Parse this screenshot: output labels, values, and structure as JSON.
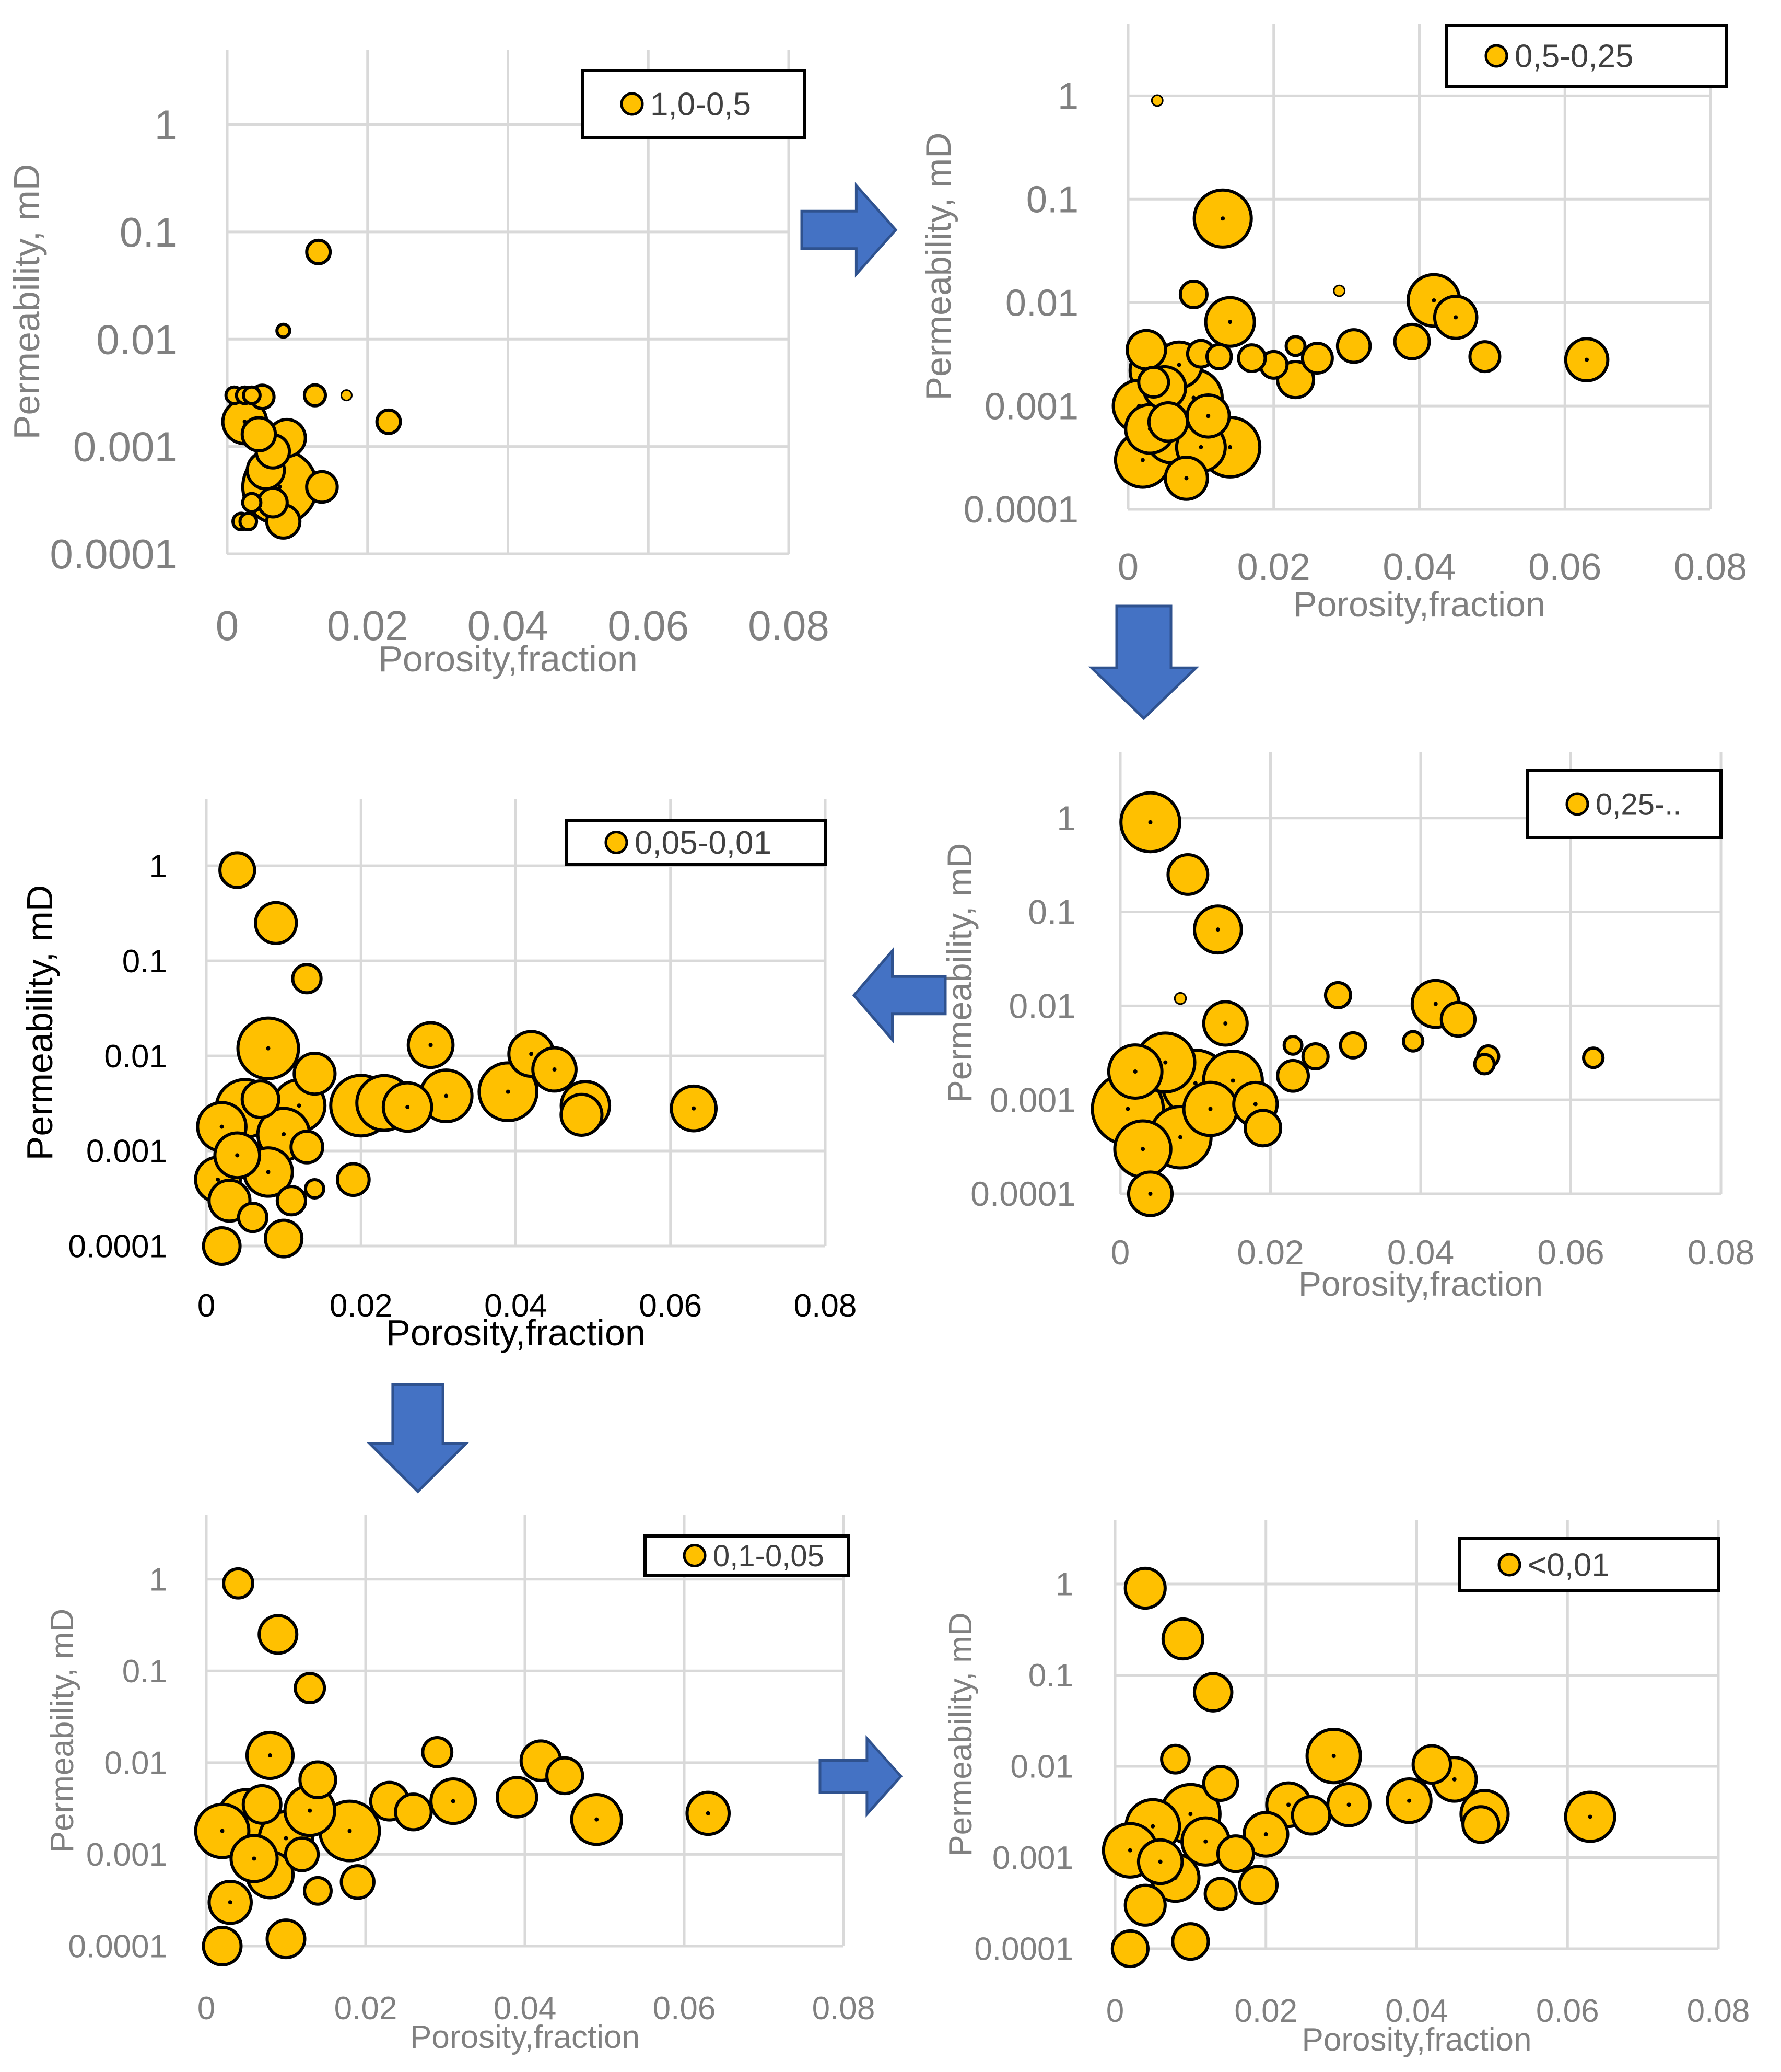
{
  "colors": {
    "bubble_fill": "#FFC000",
    "bubble_stroke": "#000000",
    "grid": "#D9D9D9",
    "arrow_fill": "#4472C4",
    "arrow_stroke": "#2F528F"
  },
  "chart_data": [
    {
      "type": "scatter",
      "subtype": "bubble",
      "series_name": "1,0-0,5",
      "xlabel": "Porosity,fraction",
      "ylabel": "Permeability, mD",
      "y_scale": "log",
      "xlim": [
        0,
        0.08
      ],
      "ylim": [
        0.0001,
        5
      ],
      "x_ticks": [
        "0",
        "0.02",
        "0.04",
        "0.06",
        "0.08"
      ],
      "y_ticks": [
        "1",
        "0.1",
        "0.01",
        "0.001",
        "0.0001"
      ],
      "legend": "top-right",
      "grid": true,
      "points": [
        {
          "x": 0.0075,
          "y": 0.00042,
          "s": 1.0
        },
        {
          "x": 0.0025,
          "y": 0.0017,
          "s": 0.35
        },
        {
          "x": 0.0085,
          "y": 0.0012,
          "s": 0.25
        },
        {
          "x": 0.0055,
          "y": 0.0006,
          "s": 0.25
        },
        {
          "x": 0.0065,
          "y": 0.0009,
          "s": 0.2
        },
        {
          "x": 0.0045,
          "y": 0.0013,
          "s": 0.2
        },
        {
          "x": 0.008,
          "y": 0.0002,
          "s": 0.2
        },
        {
          "x": 0.0135,
          "y": 0.00042,
          "s": 0.17
        },
        {
          "x": 0.0065,
          "y": 0.0003,
          "s": 0.15
        },
        {
          "x": 0.013,
          "y": 0.065,
          "s": 0.1
        },
        {
          "x": 0.023,
          "y": 0.0017,
          "s": 0.1
        },
        {
          "x": 0.005,
          "y": 0.0029,
          "s": 0.1
        },
        {
          "x": 0.0125,
          "y": 0.003,
          "s": 0.08
        },
        {
          "x": 0.0035,
          "y": 0.0003,
          "s": 0.06
        },
        {
          "x": 0.002,
          "y": 0.0002,
          "s": 0.05
        },
        {
          "x": 0.003,
          "y": 0.0002,
          "s": 0.05
        },
        {
          "x": 0.001,
          "y": 0.003,
          "s": 0.05
        },
        {
          "x": 0.0025,
          "y": 0.003,
          "s": 0.05
        },
        {
          "x": 0.0035,
          "y": 0.003,
          "s": 0.05
        },
        {
          "x": 0.008,
          "y": 0.012,
          "s": 0.03
        },
        {
          "x": 0.017,
          "y": 0.003,
          "s": 0.02
        }
      ]
    },
    {
      "type": "scatter",
      "subtype": "bubble",
      "series_name": "0,5-0,25",
      "xlabel": "Porosity,fraction",
      "ylabel": "Permeability, mD",
      "y_scale": "log",
      "xlim": [
        0,
        0.08
      ],
      "ylim": [
        0.0001,
        5
      ],
      "x_ticks": [
        "0",
        "0.02",
        "0.04",
        "0.06",
        "0.08"
      ],
      "y_ticks": [
        "1",
        "0.1",
        "0.01",
        "0.001",
        "0.0001"
      ],
      "legend": "top-right",
      "grid": true,
      "points": [
        {
          "x": 0.013,
          "y": 0.065,
          "s": 0.55
        },
        {
          "x": 0.014,
          "y": 0.0065,
          "s": 0.4
        },
        {
          "x": 0.042,
          "y": 0.0105,
          "s": 0.45
        },
        {
          "x": 0.045,
          "y": 0.0072,
          "s": 0.3
        },
        {
          "x": 0.063,
          "y": 0.0028,
          "s": 0.3
        },
        {
          "x": 0.039,
          "y": 0.0042,
          "s": 0.2
        },
        {
          "x": 0.049,
          "y": 0.003,
          "s": 0.15
        },
        {
          "x": 0.031,
          "y": 0.0038,
          "s": 0.18
        },
        {
          "x": 0.023,
          "y": 0.0018,
          "s": 0.22
        },
        {
          "x": 0.026,
          "y": 0.0029,
          "s": 0.15
        },
        {
          "x": 0.02,
          "y": 0.0025,
          "s": 0.12
        },
        {
          "x": 0.017,
          "y": 0.0029,
          "s": 0.12
        },
        {
          "x": 0.009,
          "y": 0.012,
          "s": 0.12
        },
        {
          "x": 0.014,
          "y": 0.0004,
          "s": 0.6
        },
        {
          "x": 0.009,
          "y": 0.0012,
          "s": 0.55
        },
        {
          "x": 0.004,
          "y": 0.0022,
          "s": 0.5
        },
        {
          "x": 0.002,
          "y": 0.0003,
          "s": 0.5
        },
        {
          "x": 0.006,
          "y": 0.0005,
          "s": 0.45
        },
        {
          "x": 0.01,
          "y": 0.0004,
          "s": 0.4
        },
        {
          "x": 0.0015,
          "y": 0.001,
          "s": 0.45
        },
        {
          "x": 0.007,
          "y": 0.0025,
          "s": 0.35
        },
        {
          "x": 0.003,
          "y": 0.0006,
          "s": 0.4
        },
        {
          "x": 0.005,
          "y": 0.0015,
          "s": 0.3
        },
        {
          "x": 0.008,
          "y": 0.0002,
          "s": 0.3
        },
        {
          "x": 0.011,
          "y": 0.0008,
          "s": 0.3
        },
        {
          "x": 0.0025,
          "y": 0.0035,
          "s": 0.25
        },
        {
          "x": 0.0055,
          "y": 0.0007,
          "s": 0.25
        },
        {
          "x": 0.0035,
          "y": 0.0017,
          "s": 0.15
        },
        {
          "x": 0.01,
          "y": 0.0032,
          "s": 0.12
        },
        {
          "x": 0.0125,
          "y": 0.003,
          "s": 0.1
        },
        {
          "x": 0.023,
          "y": 0.0038,
          "s": 0.06
        },
        {
          "x": 0.004,
          "y": 0.9,
          "s": 0.02
        },
        {
          "x": 0.029,
          "y": 0.013,
          "s": 0.02
        }
      ]
    },
    {
      "type": "scatter",
      "subtype": "bubble",
      "series_name": "0,25-..",
      "xlabel": "Porosity,fraction",
      "ylabel": "Permeability, mD",
      "y_scale": "log",
      "xlim": [
        0,
        0.08
      ],
      "ylim": [
        0.0001,
        5
      ],
      "x_ticks": [
        "0",
        "0.02",
        "0.04",
        "0.06",
        "0.08"
      ],
      "y_ticks": [
        "1",
        "0.1",
        "0.01",
        "0.001",
        "0.0001"
      ],
      "legend": "top-right",
      "grid": true,
      "points": [
        {
          "x": 0.004,
          "y": 0.9,
          "s": 0.55
        },
        {
          "x": 0.009,
          "y": 0.25,
          "s": 0.25
        },
        {
          "x": 0.013,
          "y": 0.065,
          "s": 0.35
        },
        {
          "x": 0.014,
          "y": 0.0065,
          "s": 0.3
        },
        {
          "x": 0.042,
          "y": 0.0105,
          "s": 0.35
        },
        {
          "x": 0.045,
          "y": 0.0072,
          "s": 0.18
        },
        {
          "x": 0.005,
          "y": 0.0012,
          "s": 1.0
        },
        {
          "x": 0.001,
          "y": 0.0008,
          "s": 0.8
        },
        {
          "x": 0.01,
          "y": 0.0015,
          "s": 0.7
        },
        {
          "x": 0.008,
          "y": 0.0004,
          "s": 0.6
        },
        {
          "x": 0.015,
          "y": 0.0016,
          "s": 0.55
        },
        {
          "x": 0.006,
          "y": 0.0025,
          "s": 0.55
        },
        {
          "x": 0.003,
          "y": 0.0003,
          "s": 0.5
        },
        {
          "x": 0.012,
          "y": 0.0008,
          "s": 0.45
        },
        {
          "x": 0.002,
          "y": 0.002,
          "s": 0.45
        },
        {
          "x": 0.018,
          "y": 0.0009,
          "s": 0.3
        },
        {
          "x": 0.004,
          "y": 0.0001,
          "s": 0.3
        },
        {
          "x": 0.019,
          "y": 0.0005,
          "s": 0.2
        },
        {
          "x": 0.023,
          "y": 0.0018,
          "s": 0.15
        },
        {
          "x": 0.026,
          "y": 0.0029,
          "s": 0.1
        },
        {
          "x": 0.031,
          "y": 0.0038,
          "s": 0.1
        },
        {
          "x": 0.029,
          "y": 0.013,
          "s": 0.1
        },
        {
          "x": 0.039,
          "y": 0.0042,
          "s": 0.06
        },
        {
          "x": 0.049,
          "y": 0.0029,
          "s": 0.07
        },
        {
          "x": 0.0485,
          "y": 0.0024,
          "s": 0.06
        },
        {
          "x": 0.063,
          "y": 0.0028,
          "s": 0.06
        },
        {
          "x": 0.023,
          "y": 0.0038,
          "s": 0.05
        },
        {
          "x": 0.008,
          "y": 0.012,
          "s": 0.02
        }
      ]
    },
    {
      "type": "scatter",
      "subtype": "bubble",
      "series_name": "0,05-0,01",
      "xlabel": "Porosity,fraction",
      "ylabel": "Permeability, mD",
      "y_scale": "log",
      "xlim": [
        0,
        0.08
      ],
      "ylim": [
        0.0001,
        5
      ],
      "x_ticks": [
        "0",
        "0.02",
        "0.04",
        "0.06",
        "0.08"
      ],
      "y_ticks": [
        "1",
        "0.1",
        "0.01",
        "0.001",
        "0.0001"
      ],
      "legend": "top-right",
      "grid": true,
      "points": [
        {
          "x": 0.004,
          "y": 0.9,
          "s": 0.18
        },
        {
          "x": 0.009,
          "y": 0.25,
          "s": 0.25
        },
        {
          "x": 0.013,
          "y": 0.065,
          "s": 0.12
        },
        {
          "x": 0.008,
          "y": 0.012,
          "s": 0.55
        },
        {
          "x": 0.029,
          "y": 0.013,
          "s": 0.3
        },
        {
          "x": 0.042,
          "y": 0.0105,
          "s": 0.3
        },
        {
          "x": 0.045,
          "y": 0.0072,
          "s": 0.28
        },
        {
          "x": 0.039,
          "y": 0.0042,
          "s": 0.5
        },
        {
          "x": 0.049,
          "y": 0.003,
          "s": 0.35
        },
        {
          "x": 0.0485,
          "y": 0.0024,
          "s": 0.25
        },
        {
          "x": 0.063,
          "y": 0.0028,
          "s": 0.3
        },
        {
          "x": 0.031,
          "y": 0.0038,
          "s": 0.4
        },
        {
          "x": 0.026,
          "y": 0.0029,
          "s": 0.35
        },
        {
          "x": 0.02,
          "y": 0.003,
          "s": 0.55
        },
        {
          "x": 0.023,
          "y": 0.0032,
          "s": 0.45
        },
        {
          "x": 0.014,
          "y": 0.0065,
          "s": 0.25
        },
        {
          "x": 0.012,
          "y": 0.003,
          "s": 0.4
        },
        {
          "x": 0.005,
          "y": 0.0028,
          "s": 0.5
        },
        {
          "x": 0.01,
          "y": 0.0015,
          "s": 0.4
        },
        {
          "x": 0.002,
          "y": 0.0018,
          "s": 0.35
        },
        {
          "x": 0.008,
          "y": 0.0006,
          "s": 0.35
        },
        {
          "x": 0.0015,
          "y": 0.0005,
          "s": 0.3
        },
        {
          "x": 0.004,
          "y": 0.0009,
          "s": 0.3
        },
        {
          "x": 0.003,
          "y": 0.0003,
          "s": 0.25
        },
        {
          "x": 0.01,
          "y": 0.00012,
          "s": 0.2
        },
        {
          "x": 0.002,
          "y": 0.0001,
          "s": 0.2
        },
        {
          "x": 0.007,
          "y": 0.0035,
          "s": 0.2
        },
        {
          "x": 0.019,
          "y": 0.0005,
          "s": 0.15
        },
        {
          "x": 0.013,
          "y": 0.0011,
          "s": 0.15
        },
        {
          "x": 0.011,
          "y": 0.0003,
          "s": 0.12
        },
        {
          "x": 0.006,
          "y": 0.0002,
          "s": 0.12
        },
        {
          "x": 0.014,
          "y": 0.0004,
          "s": 0.05
        }
      ]
    },
    {
      "type": "scatter",
      "subtype": "bubble",
      "series_name": "0,1-0,05",
      "xlabel": "Porosity,fraction",
      "ylabel": "Permeability, mD",
      "y_scale": "log",
      "xlim": [
        0,
        0.08
      ],
      "ylim": [
        0.0001,
        5
      ],
      "x_ticks": [
        "0",
        "0.02",
        "0.04",
        "0.06",
        "0.08"
      ],
      "y_ticks": [
        "1",
        "0.1",
        "0.01",
        "0.001",
        "0.0001"
      ],
      "legend": "top-right",
      "grid": true,
      "points": [
        {
          "x": 0.004,
          "y": 0.9,
          "s": 0.12
        },
        {
          "x": 0.009,
          "y": 0.25,
          "s": 0.2
        },
        {
          "x": 0.013,
          "y": 0.065,
          "s": 0.12
        },
        {
          "x": 0.008,
          "y": 0.012,
          "s": 0.3
        },
        {
          "x": 0.029,
          "y": 0.013,
          "s": 0.12
        },
        {
          "x": 0.042,
          "y": 0.0105,
          "s": 0.22
        },
        {
          "x": 0.045,
          "y": 0.0072,
          "s": 0.18
        },
        {
          "x": 0.039,
          "y": 0.0042,
          "s": 0.22
        },
        {
          "x": 0.049,
          "y": 0.0024,
          "s": 0.35
        },
        {
          "x": 0.063,
          "y": 0.0028,
          "s": 0.25
        },
        {
          "x": 0.031,
          "y": 0.0038,
          "s": 0.28
        },
        {
          "x": 0.026,
          "y": 0.0029,
          "s": 0.18
        },
        {
          "x": 0.023,
          "y": 0.0038,
          "s": 0.2
        },
        {
          "x": 0.018,
          "y": 0.0018,
          "s": 0.5
        },
        {
          "x": 0.014,
          "y": 0.0065,
          "s": 0.18
        },
        {
          "x": 0.013,
          "y": 0.003,
          "s": 0.35
        },
        {
          "x": 0.005,
          "y": 0.0025,
          "s": 0.45
        },
        {
          "x": 0.01,
          "y": 0.0015,
          "s": 0.4
        },
        {
          "x": 0.002,
          "y": 0.0018,
          "s": 0.4
        },
        {
          "x": 0.008,
          "y": 0.0006,
          "s": 0.3
        },
        {
          "x": 0.003,
          "y": 0.0003,
          "s": 0.25
        },
        {
          "x": 0.006,
          "y": 0.0009,
          "s": 0.3
        },
        {
          "x": 0.01,
          "y": 0.00012,
          "s": 0.2
        },
        {
          "x": 0.002,
          "y": 0.0001,
          "s": 0.2
        },
        {
          "x": 0.019,
          "y": 0.0005,
          "s": 0.15
        },
        {
          "x": 0.014,
          "y": 0.0004,
          "s": 0.1
        },
        {
          "x": 0.012,
          "y": 0.001,
          "s": 0.15
        },
        {
          "x": 0.007,
          "y": 0.0035,
          "s": 0.2
        }
      ]
    },
    {
      "type": "scatter",
      "subtype": "bubble",
      "series_name": "<0,01",
      "xlabel": "Porosity,fraction",
      "ylabel": "Permeability, mD",
      "y_scale": "log",
      "xlim": [
        0,
        0.08
      ],
      "ylim": [
        0.0001,
        5
      ],
      "x_ticks": [
        "0",
        "0.02",
        "0.04",
        "0.06",
        "0.08"
      ],
      "y_ticks": [
        "1",
        "0.1",
        "0.01",
        "0.001",
        "0.0001"
      ],
      "legend": "top-right",
      "grid": true,
      "points": [
        {
          "x": 0.004,
          "y": 0.9,
          "s": 0.25
        },
        {
          "x": 0.009,
          "y": 0.25,
          "s": 0.25
        },
        {
          "x": 0.013,
          "y": 0.065,
          "s": 0.22
        },
        {
          "x": 0.008,
          "y": 0.012,
          "s": 0.12
        },
        {
          "x": 0.029,
          "y": 0.013,
          "s": 0.45
        },
        {
          "x": 0.042,
          "y": 0.0105,
          "s": 0.22
        },
        {
          "x": 0.045,
          "y": 0.0072,
          "s": 0.3
        },
        {
          "x": 0.039,
          "y": 0.0042,
          "s": 0.3
        },
        {
          "x": 0.049,
          "y": 0.003,
          "s": 0.35
        },
        {
          "x": 0.0485,
          "y": 0.0023,
          "s": 0.2
        },
        {
          "x": 0.063,
          "y": 0.0028,
          "s": 0.38
        },
        {
          "x": 0.031,
          "y": 0.0038,
          "s": 0.28
        },
        {
          "x": 0.026,
          "y": 0.0029,
          "s": 0.22
        },
        {
          "x": 0.023,
          "y": 0.0038,
          "s": 0.3
        },
        {
          "x": 0.02,
          "y": 0.0018,
          "s": 0.3
        },
        {
          "x": 0.01,
          "y": 0.003,
          "s": 0.55
        },
        {
          "x": 0.014,
          "y": 0.0065,
          "s": 0.18
        },
        {
          "x": 0.005,
          "y": 0.0022,
          "s": 0.45
        },
        {
          "x": 0.002,
          "y": 0.0012,
          "s": 0.45
        },
        {
          "x": 0.008,
          "y": 0.0006,
          "s": 0.35
        },
        {
          "x": 0.012,
          "y": 0.0015,
          "s": 0.35
        },
        {
          "x": 0.004,
          "y": 0.0003,
          "s": 0.25
        },
        {
          "x": 0.006,
          "y": 0.0009,
          "s": 0.3
        },
        {
          "x": 0.01,
          "y": 0.00012,
          "s": 0.2
        },
        {
          "x": 0.002,
          "y": 0.0001,
          "s": 0.2
        },
        {
          "x": 0.019,
          "y": 0.0005,
          "s": 0.22
        },
        {
          "x": 0.014,
          "y": 0.0004,
          "s": 0.15
        },
        {
          "x": 0.016,
          "y": 0.0011,
          "s": 0.2
        }
      ]
    }
  ]
}
